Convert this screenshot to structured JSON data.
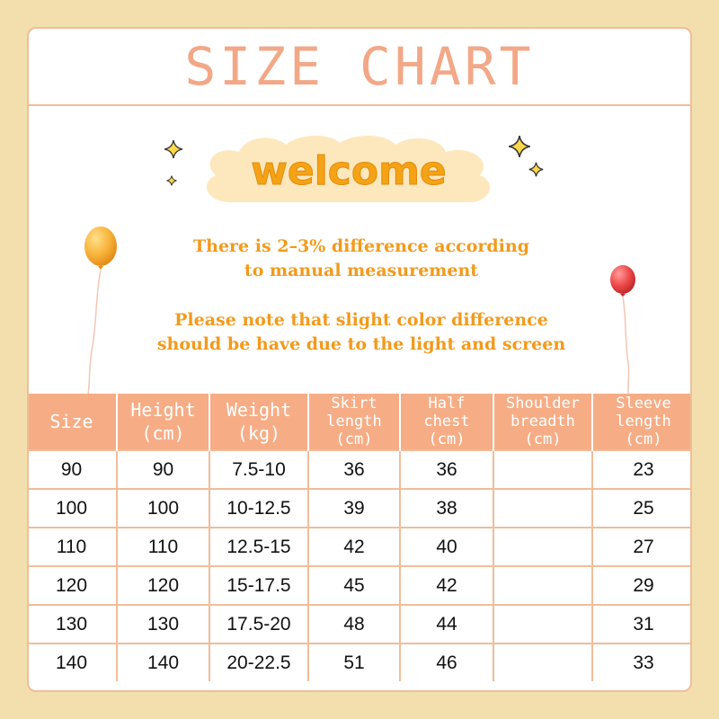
{
  "title": "SIZE CHART",
  "welcome": "welcome",
  "notes": [
    [
      "There is 2–3% difference according",
      "to manual measurement"
    ],
    [
      "Please note that slight color difference",
      "should be have due to the light and screen"
    ]
  ],
  "colors": {
    "background": "#f3dfad",
    "border": "#f0bd99",
    "title": "#f2a887",
    "header_bg": "#f6ad86",
    "welcome_text": "#f4a316",
    "note_text": "#f29a1c",
    "cloud": "#fde8bd"
  },
  "table": {
    "headers": [
      [
        "Size"
      ],
      [
        "Height",
        "(cm)"
      ],
      [
        "Weight",
        "(kg)"
      ],
      [
        "Skirt",
        "length",
        "(cm)"
      ],
      [
        "Half",
        "chest",
        "(cm)"
      ],
      [
        "Shoulder",
        "breadth",
        "(cm)"
      ],
      [
        "Sleeve",
        "length",
        "(cm)"
      ]
    ],
    "rows": [
      [
        "90",
        "90",
        "7.5-10",
        "36",
        "36",
        "",
        "23"
      ],
      [
        "100",
        "100",
        "10-12.5",
        "39",
        "38",
        "",
        "25"
      ],
      [
        "110",
        "110",
        "12.5-15",
        "42",
        "40",
        "",
        "27"
      ],
      [
        "120",
        "120",
        "15-17.5",
        "45",
        "42",
        "",
        "29"
      ],
      [
        "130",
        "130",
        "17.5-20",
        "48",
        "44",
        "",
        "31"
      ],
      [
        "140",
        "140",
        "20-22.5",
        "51",
        "46",
        "",
        "33"
      ]
    ]
  },
  "icons": [
    "sparkle-star-icon",
    "orange-balloon-icon",
    "red-balloon-icon",
    "cloud-badge"
  ]
}
